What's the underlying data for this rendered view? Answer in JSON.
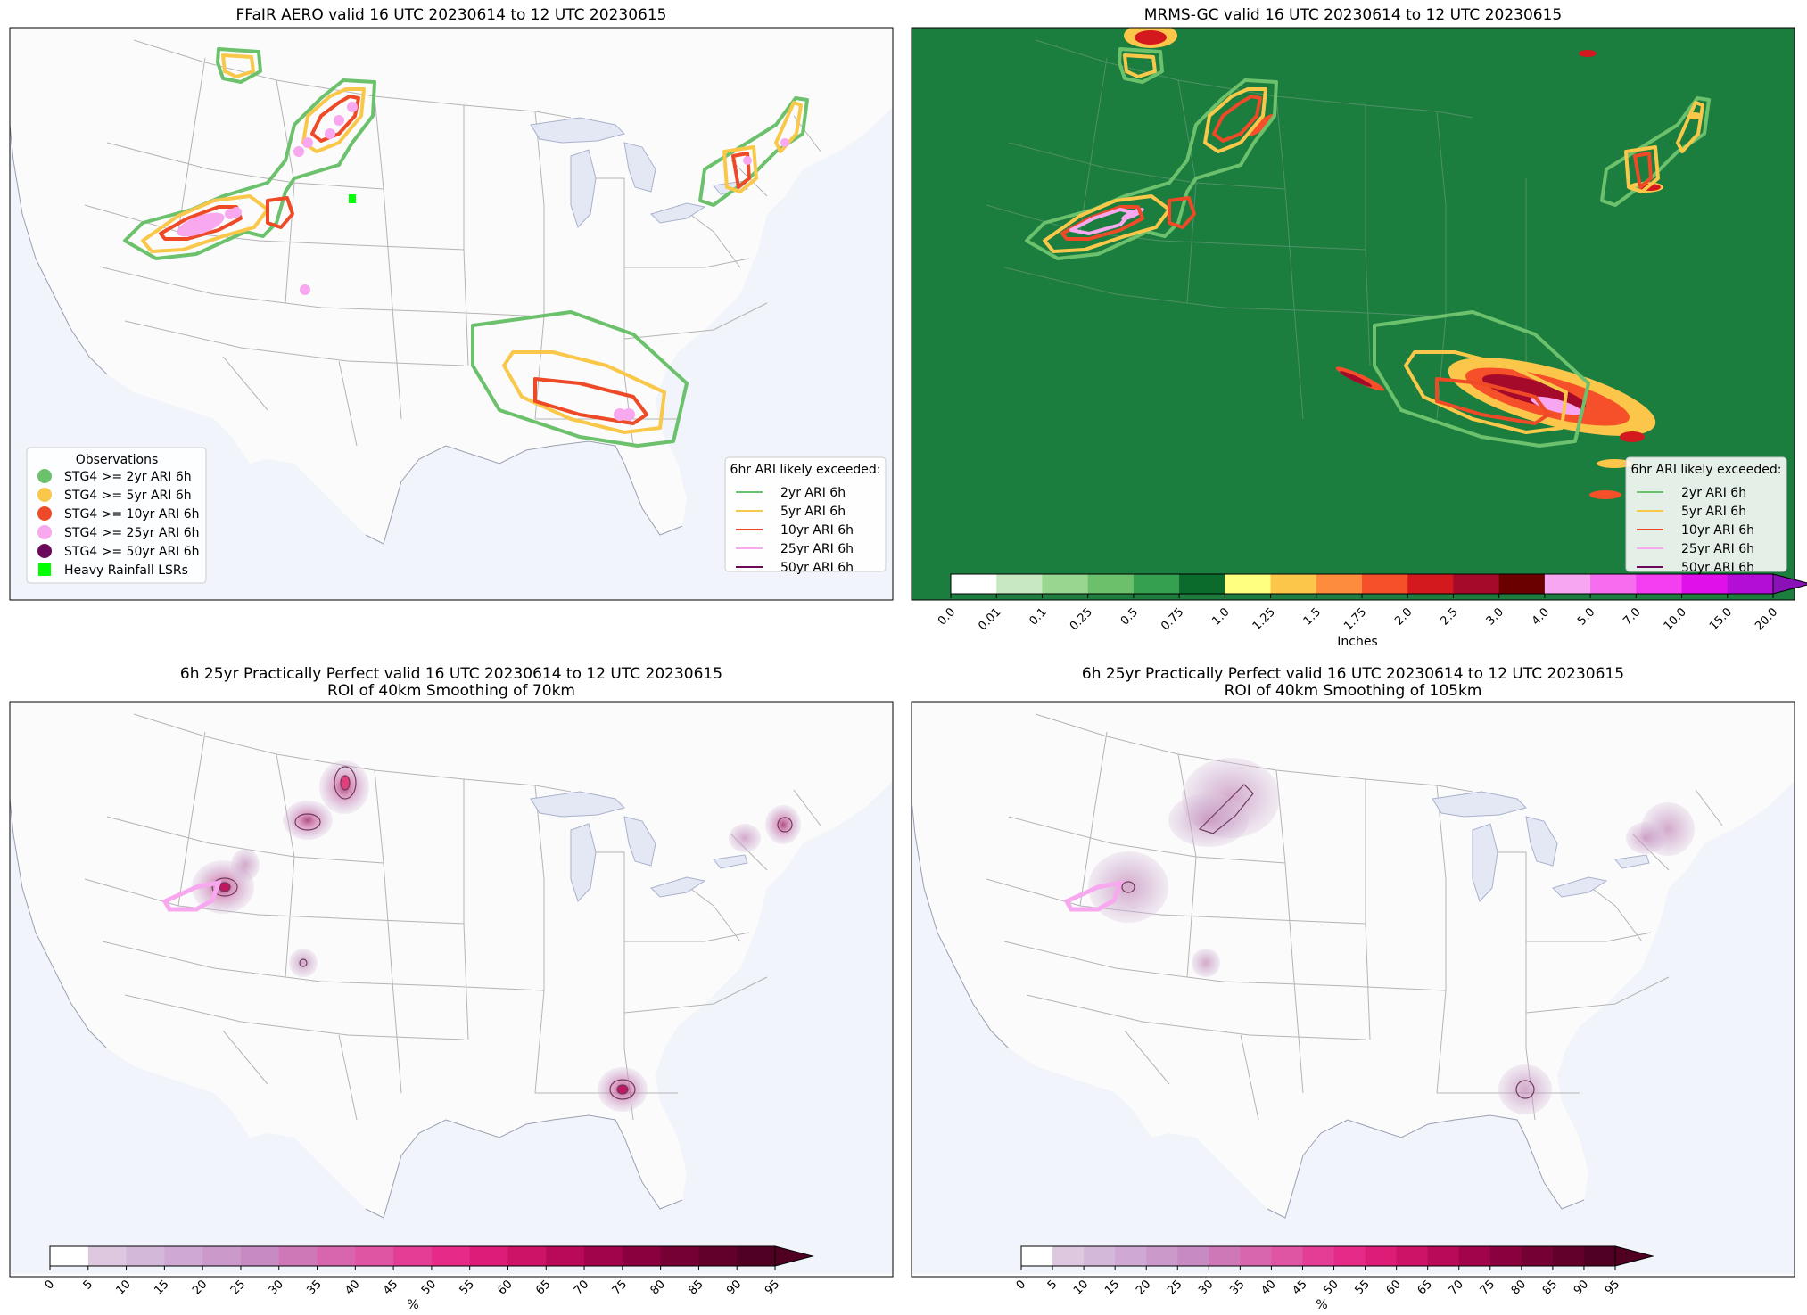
{
  "panels": [
    {
      "id": "aero",
      "title": "FFaIR AERO valid 16 UTC 20230614 to 12 UTC 20230615",
      "obs_legend": {
        "title": "Observations",
        "items": [
          {
            "label": "STG4 >= 2yr ARI 6h",
            "color": "#6cc16c",
            "shape": "circle"
          },
          {
            "label": "STG4 >= 5yr ARI 6h",
            "color": "#f9c84a",
            "shape": "circle"
          },
          {
            "label": "STG4 >= 10yr ARI 6h",
            "color": "#ee4a28",
            "shape": "circle"
          },
          {
            "label": "STG4 >= 25yr ARI 6h",
            "color": "#f7a8ef",
            "shape": "circle"
          },
          {
            "label": "STG4 >= 50yr ARI 6h",
            "color": "#6b0a5a",
            "shape": "circle"
          },
          {
            "label": "Heavy Rainfall LSRs",
            "color": "#00ff00",
            "shape": "square"
          }
        ]
      }
    },
    {
      "id": "mrms",
      "title": "MRMS-GC valid 16 UTC 20230614 to 12 UTC 20230615",
      "colorbar": {
        "label": "Inches",
        "ticks": [
          "0.0",
          "0.01",
          "0.1",
          "0.25",
          "0.5",
          "0.75",
          "1.0",
          "1.25",
          "1.5",
          "1.75",
          "2.0",
          "2.5",
          "3.0",
          "4.0",
          "5.0",
          "7.0",
          "10.0",
          "15.0",
          "20.0"
        ],
        "colors": [
          "#ffffff",
          "#c7e8c0",
          "#99d68f",
          "#6cc06c",
          "#34a050",
          "#0a6b2c",
          "#ffff80",
          "#fcc64a",
          "#fd8d3c",
          "#f5502a",
          "#d4191e",
          "#a60a2a",
          "#6a0000",
          "#f7a6f2",
          "#f66df0",
          "#f43ff0",
          "#e010ea",
          "#b20ed6"
        ],
        "extend_color": "#8a10b8"
      }
    },
    {
      "id": "pp70",
      "title": "6h 25yr Practically Perfect valid 16 UTC 20230614 to 12 UTC 20230615",
      "subtitle": "ROI of 40km Smoothing of 70km"
    },
    {
      "id": "pp105",
      "title": "6h 25yr Practically Perfect valid 16 UTC 20230614 to 12 UTC 20230615",
      "subtitle": "ROI of 40km Smoothing of 105km"
    }
  ],
  "ari_legend": {
    "title": "6hr ARI likely exceeded:",
    "items": [
      {
        "label": "2yr ARI 6h",
        "color": "#6cc16c"
      },
      {
        "label": "5yr ARI 6h",
        "color": "#f9c84a"
      },
      {
        "label": "10yr ARI 6h",
        "color": "#ee4a28"
      },
      {
        "label": "25yr ARI 6h",
        "color": "#f7a8ef"
      },
      {
        "label": "50yr ARI 6h",
        "color": "#6b0a5a"
      }
    ]
  },
  "percent_colorbar": {
    "label": "%",
    "ticks": [
      "0",
      "5",
      "10",
      "15",
      "20",
      "25",
      "30",
      "35",
      "40",
      "45",
      "50",
      "55",
      "60",
      "65",
      "70",
      "75",
      "80",
      "85",
      "90",
      "95"
    ],
    "colors": [
      "#ffffff",
      "#ddc8e0",
      "#d4b8da",
      "#cfa9d3",
      "#cb9acb",
      "#c88ac3",
      "#cf78b8",
      "#d866ae",
      "#e054a4",
      "#e43d96",
      "#e52a88",
      "#dd1c78",
      "#cc1367",
      "#b80a58",
      "#a1044b",
      "#8a003e",
      "#750034",
      "#630029",
      "#500022"
    ],
    "extend_color": "#500022"
  },
  "colors": {
    "aero_2yr": "#6cc16c",
    "aero_5yr": "#f9c84a",
    "aero_10yr": "#ee4a28",
    "aero_25yr": "#f7a8ef",
    "mrms_background": "#1b7d3e"
  }
}
